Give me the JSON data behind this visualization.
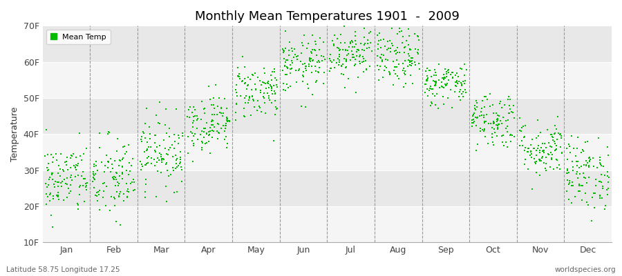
{
  "title": "Monthly Mean Temperatures 1901  -  2009",
  "ylabel": "Temperature",
  "subtitle_left": "Latitude 58.75 Longitude 17.25",
  "subtitle_right": "worldspecies.org",
  "legend_label": "Mean Temp",
  "figure_bg_color": "#ffffff",
  "plot_bg_color": "#f5f5f5",
  "band_light": "#f5f5f5",
  "band_dark": "#e8e8e8",
  "dot_color": "#00bb00",
  "dot_size": 3,
  "ylim": [
    10,
    70
  ],
  "yticks": [
    10,
    20,
    30,
    40,
    50,
    60,
    70
  ],
  "ytick_labels": [
    "10F",
    "20F",
    "30F",
    "40F",
    "50F",
    "60F",
    "70F"
  ],
  "months": [
    "Jan",
    "Feb",
    "Mar",
    "Apr",
    "May",
    "Jun",
    "Jul",
    "Aug",
    "Sep",
    "Oct",
    "Nov",
    "Dec"
  ],
  "monthly_mean_F": [
    27.5,
    27.5,
    35,
    43,
    52,
    59,
    63,
    61,
    54,
    44,
    36,
    29
  ],
  "monthly_std_F": [
    5,
    6,
    5,
    4,
    4,
    4,
    4,
    4,
    3,
    4,
    4,
    5
  ],
  "n_years": 109,
  "seed": 42,
  "xlim": [
    0,
    12
  ],
  "vline_positions": [
    1,
    2,
    3,
    4,
    5,
    6,
    7,
    8,
    9,
    10,
    11
  ],
  "xtick_positions": [
    0.5,
    1.5,
    2.5,
    3.5,
    4.5,
    5.5,
    6.5,
    7.5,
    8.5,
    9.5,
    10.5,
    11.5
  ]
}
